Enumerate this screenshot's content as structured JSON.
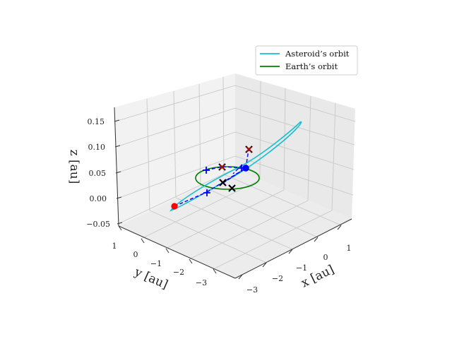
{
  "chart_data": {
    "type": "line3d",
    "title": "",
    "xlabel": "$x$ [au]",
    "ylabel": "$y$ [au]",
    "zlabel": "$z$ [au]",
    "xlabel_text": "x [au]",
    "ylabel_text": "y [au]",
    "zlabel_text": "z [au]",
    "xlim": [
      -3.2,
      1.5
    ],
    "ylim": [
      -3.7,
      1.3
    ],
    "zlim": [
      -0.055,
      0.17
    ],
    "x_ticks": [
      "−3",
      "−2",
      "−1",
      "0",
      "1"
    ],
    "y_ticks": [
      "1",
      "0",
      "−1",
      "−2",
      "−3"
    ],
    "z_ticks": [
      "−0.05",
      "0.00",
      "0.05",
      "0.10",
      "0.15"
    ],
    "grid": true,
    "legend_position": "upper right",
    "legend": [
      {
        "label": "Asteroid’s orbit",
        "color": "#17becf"
      },
      {
        "label": "Earth’s orbit",
        "color": "#008000"
      }
    ],
    "series": [
      {
        "name": "Asteroid’s orbit",
        "kind": "ellipse",
        "color": "#17becf"
      },
      {
        "name": "Earth’s orbit",
        "kind": "circle",
        "color": "#008000"
      }
    ],
    "markers": [
      {
        "kind": "red-dot",
        "color": "#ff0000"
      },
      {
        "kind": "blue-dot",
        "color": "#0000ff"
      },
      {
        "kind": "blue-plus",
        "count": 3,
        "color": "#0000ff"
      },
      {
        "kind": "black-x",
        "count": 4,
        "color": "#000000"
      },
      {
        "kind": "red-x",
        "count": 2,
        "color": "#ff0000"
      }
    ]
  }
}
